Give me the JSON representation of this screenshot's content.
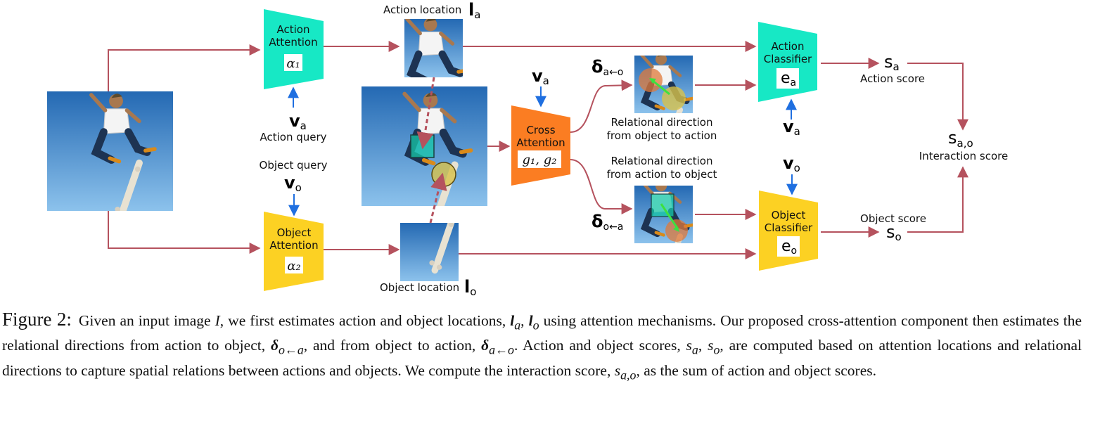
{
  "labels": {
    "action_attention_l1": "Action",
    "action_attention_l2": "Attention",
    "alpha1": "α₁",
    "object_attention_l1": "Object",
    "object_attention_l2": "Attention",
    "alpha2": "α₂",
    "action_query_sym": "v",
    "action_query_sub": "a",
    "action_query": "Action query",
    "object_query": "Object query",
    "object_query_sym": "v",
    "object_query_sub": "o",
    "action_location": "Action location",
    "action_location_sym": "l",
    "action_location_sub": "a",
    "object_location": "Object location",
    "object_location_sym": "l",
    "object_location_sub": "o",
    "cross_l1": "Cross",
    "cross_l2": "Attention",
    "cross_g": "g₁, g₂",
    "cross_query_sym": "v",
    "cross_query_sub": "a",
    "delta_ao_sym": "δ",
    "delta_ao_sub": "a←o",
    "delta_oa_sym": "δ",
    "delta_oa_sub": "o←a",
    "rel_obj_to_act_l1": "Relational direction",
    "rel_obj_to_act_l2": "from object to action",
    "rel_act_to_obj_l1": "Relational direction",
    "rel_act_to_obj_l2": "from action to object",
    "action_classifier_l1": "Action",
    "action_classifier_l2": "Classifier",
    "ea": "e",
    "ea_sub": "a",
    "object_classifier_l1": "Object",
    "object_classifier_l2": "Classifier",
    "eo": "e",
    "eo_sub": "o",
    "va_cls_sym": "v",
    "va_cls_sub": "a",
    "vo_cls_sym": "v",
    "vo_cls_sub": "o",
    "sa_sym": "s",
    "sa_sub": "a",
    "action_score": "Action score",
    "so_sym": "s",
    "so_sub": "o",
    "object_score": "Object score",
    "sao_sym": "s",
    "sao_sub": "a,o",
    "interaction_score": "Interaction score"
  },
  "colors": {
    "arrow": "#b5525e",
    "query_arrow": "#1f6fe0",
    "action_block": "#17e8c5",
    "object_block": "#fcd123",
    "cross_block": "#fb7d22",
    "sky_top": "#2469b3",
    "sky_bottom": "#8cc2ec"
  },
  "caption": {
    "fig_label": "Figure 2:",
    "t1": "Given an input image ",
    "I": "I",
    "t2": ", we first estimates action and object locations, ",
    "la": "l",
    "la_sub": "a",
    "sep1": ", ",
    "lo": "l",
    "lo_sub": "o",
    "t3": " using attention mechanisms. Our proposed cross-attention component then estimates the relational directions from action to object, ",
    "d1": "δ",
    "d1_sub": "o←a",
    "t4": ", and from object to action, ",
    "d2": "δ",
    "d2_sub": "a←o",
    "t5": ". Action and object scores, ",
    "sa": "s",
    "sa_sub": "a",
    "sep2": ", ",
    "so": "s",
    "so_sub": "o",
    "t6": ", are computed based on attention locations and relational directions to capture spatial relations between actions and objects. We compute the interaction score, ",
    "sao": "s",
    "sao_sub": "a,o",
    "t7": ", as the sum of action and object scores."
  }
}
